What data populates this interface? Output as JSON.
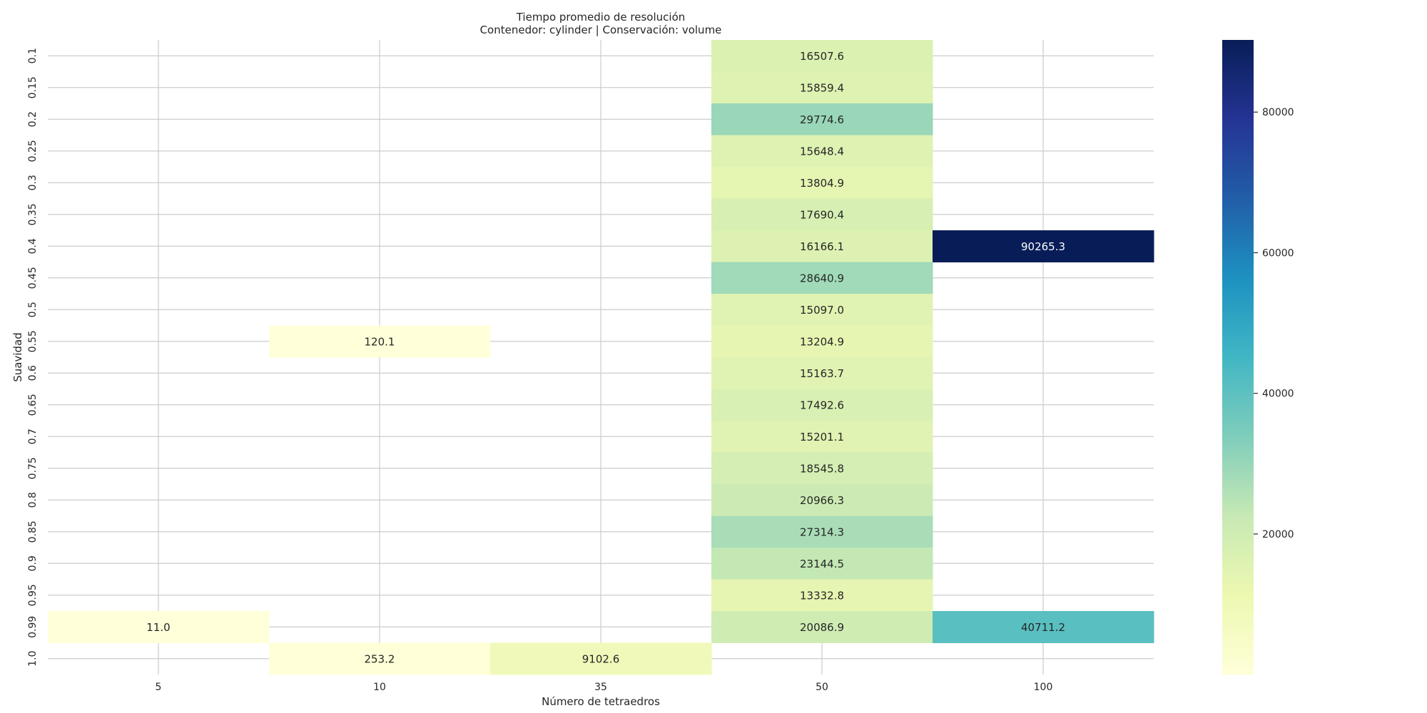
{
  "chart_data": {
    "type": "heatmap",
    "title": "Tiempo promedio de resolución",
    "subtitle": "Contenedor: cylinder | Conservación: volume",
    "xlabel": "Número de tetraedros",
    "ylabel": "Suavidad",
    "x_categories": [
      "5",
      "10",
      "35",
      "50",
      "100"
    ],
    "y_categories": [
      "0.1",
      "0.15",
      "0.2",
      "0.25",
      "0.3",
      "0.35",
      "0.4",
      "0.45",
      "0.5",
      "0.55",
      "0.6",
      "0.65",
      "0.7",
      "0.75",
      "0.8",
      "0.85",
      "0.9",
      "0.95",
      "0.99",
      "1.0"
    ],
    "values": [
      [
        null,
        null,
        null,
        16507.6,
        null
      ],
      [
        null,
        null,
        null,
        15859.4,
        null
      ],
      [
        null,
        null,
        null,
        29774.6,
        null
      ],
      [
        null,
        null,
        null,
        15648.4,
        null
      ],
      [
        null,
        null,
        null,
        13804.9,
        null
      ],
      [
        null,
        null,
        null,
        17690.4,
        null
      ],
      [
        null,
        null,
        null,
        16166.1,
        90265.3
      ],
      [
        null,
        null,
        null,
        28640.9,
        null
      ],
      [
        null,
        null,
        null,
        15097.0,
        null
      ],
      [
        null,
        120.1,
        null,
        13204.9,
        null
      ],
      [
        null,
        null,
        null,
        15163.7,
        null
      ],
      [
        null,
        null,
        null,
        17492.6,
        null
      ],
      [
        null,
        null,
        null,
        15201.1,
        null
      ],
      [
        null,
        null,
        null,
        18545.8,
        null
      ],
      [
        null,
        null,
        null,
        20966.3,
        null
      ],
      [
        null,
        null,
        null,
        27314.3,
        null
      ],
      [
        null,
        null,
        null,
        23144.5,
        null
      ],
      [
        null,
        null,
        null,
        13332.8,
        null
      ],
      [
        11.0,
        null,
        null,
        20086.9,
        40711.2
      ],
      [
        null,
        253.2,
        9102.6,
        null,
        null
      ]
    ],
    "value_labels": [
      [
        null,
        null,
        null,
        "16507.6",
        null
      ],
      [
        null,
        null,
        null,
        "15859.4",
        null
      ],
      [
        null,
        null,
        null,
        "29774.6",
        null
      ],
      [
        null,
        null,
        null,
        "15648.4",
        null
      ],
      [
        null,
        null,
        null,
        "13804.9",
        null
      ],
      [
        null,
        null,
        null,
        "17690.4",
        null
      ],
      [
        null,
        null,
        null,
        "16166.1",
        "90265.3"
      ],
      [
        null,
        null,
        null,
        "28640.9",
        null
      ],
      [
        null,
        null,
        null,
        "15097.0",
        null
      ],
      [
        null,
        "120.1",
        null,
        "13204.9",
        null
      ],
      [
        null,
        null,
        null,
        "15163.7",
        null
      ],
      [
        null,
        null,
        null,
        "17492.6",
        null
      ],
      [
        null,
        null,
        null,
        "15201.1",
        null
      ],
      [
        null,
        null,
        null,
        "18545.8",
        null
      ],
      [
        null,
        null,
        null,
        "20966.3",
        null
      ],
      [
        null,
        null,
        null,
        "27314.3",
        null
      ],
      [
        null,
        null,
        null,
        "23144.5",
        null
      ],
      [
        null,
        null,
        null,
        "13332.8",
        null
      ],
      [
        "11.0",
        null,
        null,
        "20086.9",
        "40711.2"
      ],
      [
        null,
        "253.2",
        "9102.6",
        null,
        null
      ]
    ],
    "colorbar": {
      "colormap": "YlGnBu",
      "min": 11.0,
      "max": 90265.3,
      "ticks": [
        20000,
        40000,
        60000,
        80000
      ],
      "tick_labels": [
        "20000",
        "40000",
        "60000",
        "80000"
      ]
    },
    "grid": true,
    "colors": {
      "grid": "#cccccc",
      "text_dark": "#262626",
      "text_light": "#ffffff"
    }
  }
}
